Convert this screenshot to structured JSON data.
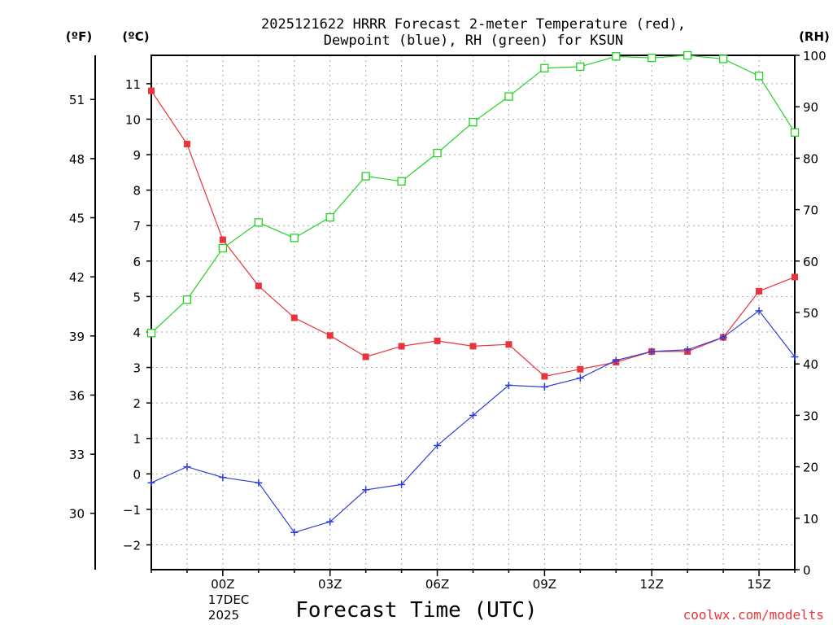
{
  "chart_data": {
    "type": "line",
    "title_lines": [
      "2025121622 HRRR Forecast 2-meter Temperature (red),",
      "Dewpoint (blue), RH (green) for KSUN"
    ],
    "xlabel": "Forecast Time (UTC)",
    "credit": "coolwx.com/modelts",
    "units": {
      "fahrenheit": "(ºF)",
      "celsius": "(ºC)",
      "rh": "(RH)"
    },
    "date_lines": [
      "17DEC",
      "2025"
    ],
    "x_hours": [
      -2,
      -1,
      0,
      1,
      2,
      3,
      4,
      5,
      6,
      7,
      8,
      9,
      10,
      11,
      12,
      13,
      14,
      15,
      16
    ],
    "x_ticks": [
      {
        "hour": 0,
        "label": "00Z"
      },
      {
        "hour": 3,
        "label": "03Z"
      },
      {
        "hour": 6,
        "label": "06Z"
      },
      {
        "hour": 9,
        "label": "09Z"
      },
      {
        "hour": 12,
        "label": "12Z"
      },
      {
        "hour": 15,
        "label": "15Z"
      }
    ],
    "xlim": [
      -2,
      16
    ],
    "celsius_axis": {
      "range": [
        -2.7,
        11.8
      ],
      "ticks": [
        -2,
        -1,
        0,
        1,
        2,
        3,
        4,
        5,
        6,
        7,
        8,
        9,
        10,
        11
      ]
    },
    "fahrenheit_axis": {
      "ticks": [
        30,
        33,
        36,
        39,
        42,
        45,
        48,
        51
      ]
    },
    "rh_axis": {
      "range": [
        0,
        100
      ],
      "ticks": [
        0,
        10,
        20,
        30,
        40,
        50,
        60,
        70,
        80,
        90,
        100
      ]
    },
    "series": [
      {
        "name": "Temperature",
        "unit": "C",
        "color": "#e8343a",
        "marker": "filled-square",
        "values": [
          10.8,
          9.3,
          6.6,
          5.3,
          4.4,
          3.9,
          3.3,
          3.6,
          3.75,
          3.6,
          3.65,
          2.75,
          2.95,
          3.15,
          3.45,
          3.45,
          3.85,
          5.15,
          5.55
        ]
      },
      {
        "name": "Dewpoint",
        "unit": "C",
        "color": "#2f3fd8",
        "marker": "plus",
        "values": [
          -0.25,
          0.2,
          -0.1,
          -0.25,
          -1.65,
          -1.35,
          -0.45,
          -0.3,
          0.8,
          1.65,
          2.5,
          2.45,
          2.7,
          3.2,
          3.45,
          3.5,
          3.85,
          4.6,
          3.3
        ]
      },
      {
        "name": "RH",
        "unit": "%",
        "color": "#22d322",
        "marker": "open-square",
        "values": [
          46,
          52.5,
          62.5,
          67.5,
          64.5,
          68.5,
          76.5,
          75.5,
          81,
          87,
          92,
          97.5,
          97.8,
          99.8,
          99.5,
          100,
          99.3,
          96,
          85
        ]
      }
    ]
  }
}
